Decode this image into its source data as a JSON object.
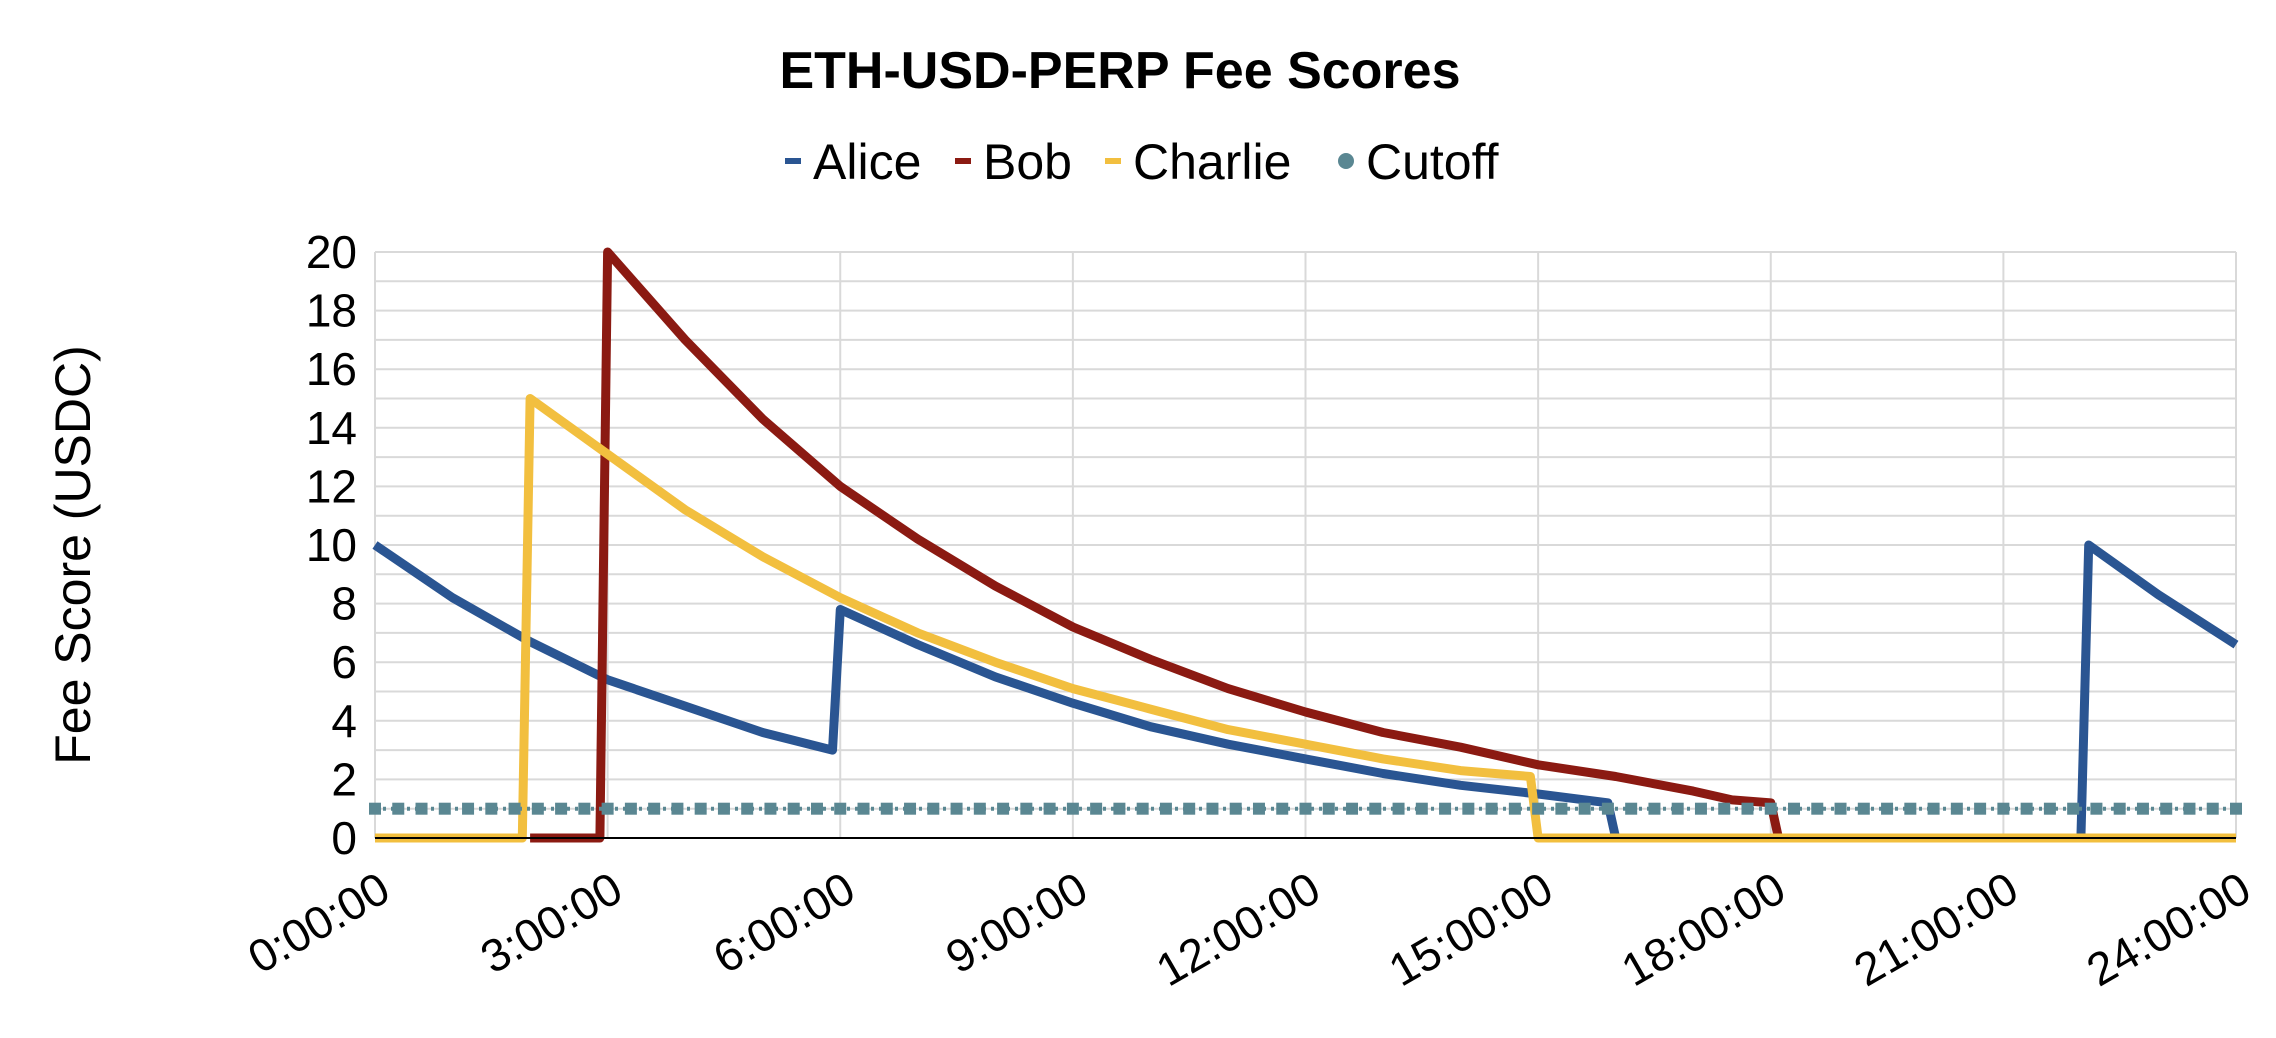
{
  "chart_data": {
    "type": "line",
    "title": "ETH-USD-PERP Fee Scores",
    "ylabel": "Fee Score (USDC)",
    "xlabel": "",
    "x_unit": "hours",
    "xlim": [
      0,
      24
    ],
    "ylim": [
      0,
      20
    ],
    "x_ticks": [
      0,
      3,
      6,
      9,
      12,
      15,
      18,
      21,
      24
    ],
    "x_tick_labels": [
      "0:00:00",
      "3:00:00",
      "6:00:00",
      "9:00:00",
      "12:00:00",
      "15:00:00",
      "18:00:00",
      "21:00:00",
      "24:00:00"
    ],
    "y_ticks": [
      0,
      2,
      4,
      6,
      8,
      10,
      12,
      14,
      16,
      18,
      20
    ],
    "y_tick_labels": [
      "0",
      "2",
      "4",
      "6",
      "8",
      "10",
      "12",
      "14",
      "16",
      "18",
      "20"
    ],
    "grid": true,
    "legend_position": "top",
    "series": [
      {
        "name": "Alice",
        "color": "#2a5592",
        "points": [
          [
            0,
            10
          ],
          [
            1,
            8.2
          ],
          [
            2,
            6.7
          ],
          [
            3,
            5.4
          ],
          [
            4,
            4.5
          ],
          [
            5,
            3.6
          ],
          [
            5.9,
            3.0
          ],
          [
            6,
            7.8
          ],
          [
            7,
            6.6
          ],
          [
            8,
            5.5
          ],
          [
            9,
            4.6
          ],
          [
            10,
            3.8
          ],
          [
            11,
            3.2
          ],
          [
            12,
            2.7
          ],
          [
            13,
            2.2
          ],
          [
            14,
            1.8
          ],
          [
            15,
            1.5
          ],
          [
            15.9,
            1.2
          ],
          [
            16.0,
            0
          ],
          [
            22.0,
            0
          ],
          [
            22.1,
            10
          ],
          [
            23,
            8.3
          ],
          [
            24,
            6.6
          ]
        ]
      },
      {
        "name": "Bob",
        "color": "#8b1a12",
        "points": [
          [
            2.0,
            0
          ],
          [
            2.9,
            0
          ],
          [
            3.0,
            20
          ],
          [
            4,
            17
          ],
          [
            5,
            14.3
          ],
          [
            6,
            12.0
          ],
          [
            7,
            10.2
          ],
          [
            8,
            8.6
          ],
          [
            9,
            7.2
          ],
          [
            10,
            6.1
          ],
          [
            11,
            5.1
          ],
          [
            12,
            4.3
          ],
          [
            13,
            3.6
          ],
          [
            14,
            3.1
          ],
          [
            15,
            2.5
          ],
          [
            16,
            2.1
          ],
          [
            17,
            1.6
          ],
          [
            17.5,
            1.3
          ],
          [
            18.0,
            1.2
          ],
          [
            18.1,
            0
          ],
          [
            24,
            0
          ]
        ]
      },
      {
        "name": "Charlie",
        "color": "#f2bf3f",
        "points": [
          [
            0,
            0
          ],
          [
            1.9,
            0
          ],
          [
            2.0,
            15
          ],
          [
            3,
            13.1
          ],
          [
            4,
            11.2
          ],
          [
            5,
            9.6
          ],
          [
            6,
            8.2
          ],
          [
            7,
            7.0
          ],
          [
            8,
            6.0
          ],
          [
            9,
            5.1
          ],
          [
            10,
            4.4
          ],
          [
            11,
            3.7
          ],
          [
            12,
            3.2
          ],
          [
            13,
            2.7
          ],
          [
            14,
            2.3
          ],
          [
            14.9,
            2.1
          ],
          [
            15.0,
            0
          ],
          [
            24,
            0
          ]
        ]
      },
      {
        "name": "Cutoff",
        "color": "#5a8792",
        "constant": 1,
        "x_range": [
          0,
          24
        ],
        "marker_spacing": 0.3
      }
    ]
  }
}
